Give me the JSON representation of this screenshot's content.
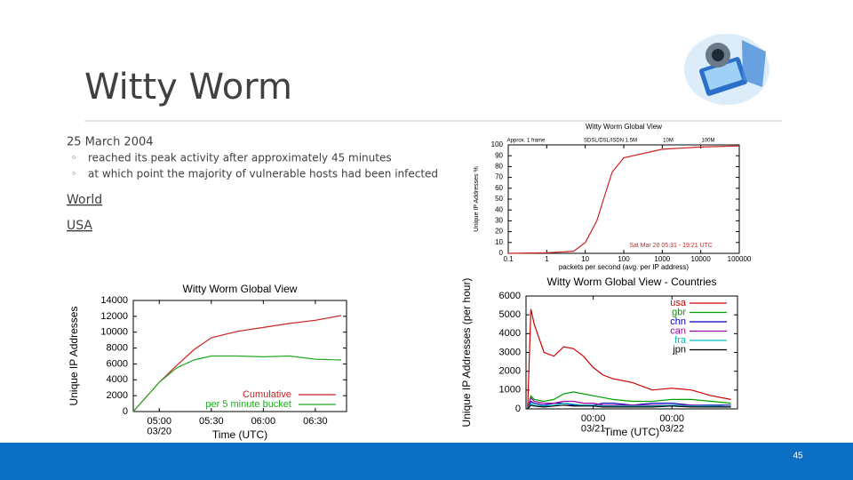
{
  "slide": {
    "title": "Witty Worm",
    "subtitle": "25 March 2004",
    "bullets": [
      "reached its peak activity after approximately 45 minutes",
      "at which point the majority of vulnerable hosts had been infected"
    ],
    "links": [
      "World",
      "USA"
    ],
    "page_number": "45"
  },
  "chart_data": [
    {
      "type": "line",
      "title": "Witty Worm Global View",
      "xlabel": "Time (UTC)",
      "ylabel": "Unique IP Addresses",
      "x": [
        "04:45",
        "05:00",
        "05:10",
        "05:20",
        "05:30",
        "05:45",
        "06:00",
        "06:15",
        "06:30",
        "06:45"
      ],
      "series": [
        {
          "name": "Cumulative",
          "color": "#cc2222",
          "values": [
            0,
            3700,
            5800,
            7800,
            9300,
            10100,
            10600,
            11100,
            11500,
            12100
          ]
        },
        {
          "name": "per 5 minute bucket",
          "color": "#22aa22",
          "values": [
            0,
            3700,
            5500,
            6500,
            7000,
            7000,
            6900,
            7000,
            6600,
            6500
          ]
        }
      ],
      "xlim": [
        "04:45",
        "06:48"
      ],
      "ylim": [
        0,
        14000
      ],
      "xticks": [
        {
          "value": "05:00",
          "label": "05:00\n03/20"
        },
        "05:30",
        "06:00",
        "06:30"
      ],
      "yticks": [
        0,
        2000,
        4000,
        6000,
        8000,
        10000,
        12000,
        14000
      ],
      "legend": "lower right"
    },
    {
      "type": "line",
      "title": "Witty Worm Global View",
      "xlabel": "packets per second (avg. per IP address)",
      "ylabel": "Unique IP Addresses %",
      "xscale": "log",
      "x": [
        0.1,
        1,
        5,
        10,
        20,
        30,
        50,
        100,
        1000,
        10000,
        100000
      ],
      "series": [
        {
          "color": "#cc2222",
          "values": [
            0,
            0.5,
            2,
            10,
            30,
            50,
            75,
            88,
            96,
            98,
            99
          ]
        }
      ],
      "xlim": [
        0.1,
        100000
      ],
      "ylim": [
        0,
        100
      ],
      "xticks": [
        0.1,
        1,
        10,
        100,
        1000,
        10000,
        100000
      ],
      "yticks": [
        0,
        10,
        20,
        30,
        40,
        50,
        60,
        70,
        80,
        90,
        100
      ],
      "annotations": [
        "Approx. 1 frame",
        "SDSL/DSL/ISDN 1.5M",
        "10M",
        "100M",
        "Sat Mar 20 05:31 - 19:21 UTC"
      ]
    },
    {
      "type": "line",
      "title": "Witty Worm Global View - Countries",
      "xlabel": "Time (UTC)",
      "ylabel": "Unique IP Addresses (per hour)",
      "x": [
        "03/20 04:00",
        "03/20 05:00",
        "03/20 06:00",
        "03/20 09:00",
        "03/20 12:00",
        "03/20 15:00",
        "03/20 18:00",
        "03/20 21:00",
        "03/21 00:00",
        "03/21 03:00",
        "03/21 06:00",
        "03/21 12:00",
        "03/21 18:00",
        "03/22 00:00",
        "03/22 06:00",
        "03/22 12:00",
        "03/22 18:00"
      ],
      "series": [
        {
          "name": "usa",
          "color": "#cc0000",
          "values": [
            0,
            5300,
            4500,
            3000,
            2800,
            3300,
            3200,
            2800,
            2200,
            1800,
            1600,
            1400,
            1000,
            1100,
            1000,
            700,
            500
          ]
        },
        {
          "name": "gbr",
          "color": "#00a000",
          "values": [
            0,
            700,
            500,
            400,
            500,
            800,
            900,
            800,
            700,
            600,
            500,
            400,
            400,
            500,
            500,
            400,
            300
          ]
        },
        {
          "name": "chn",
          "color": "#0000c0",
          "values": [
            0,
            400,
            300,
            200,
            300,
            300,
            200,
            200,
            200,
            300,
            300,
            200,
            300,
            300,
            200,
            200,
            200
          ]
        },
        {
          "name": "can",
          "color": "#a000a0",
          "values": [
            0,
            600,
            400,
            300,
            300,
            400,
            400,
            300,
            300,
            200,
            200,
            200,
            200,
            200,
            200,
            150,
            100
          ]
        },
        {
          "name": "fra",
          "color": "#00c0c0",
          "values": [
            0,
            300,
            200,
            150,
            200,
            300,
            250,
            200,
            200,
            150,
            150,
            150,
            150,
            200,
            150,
            150,
            100
          ]
        },
        {
          "name": "jpn",
          "color": "#000000",
          "values": [
            0,
            200,
            150,
            100,
            150,
            200,
            150,
            150,
            150,
            100,
            100,
            100,
            100,
            150,
            100,
            100,
            100
          ]
        }
      ],
      "xlim": [
        "03/20 03:30",
        "03/22 20:00"
      ],
      "ylim": [
        0,
        6000
      ],
      "xticks": [
        {
          "value": "03/21 00:00",
          "label": "00:00\n03/21"
        },
        {
          "value": "03/22 00:00",
          "label": "00:00\n03/22"
        }
      ],
      "yticks": [
        0,
        1000,
        2000,
        3000,
        4000,
        5000,
        6000
      ],
      "legend": "upper right"
    }
  ]
}
